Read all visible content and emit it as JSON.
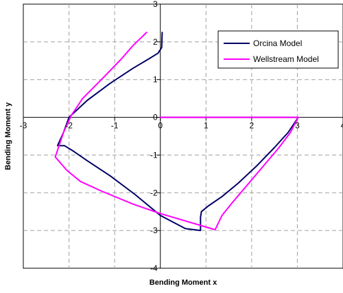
{
  "chart_data": {
    "type": "line",
    "title": "",
    "xlabel": "Bending Moment x",
    "ylabel": "Bending Moment y",
    "xlim": [
      -3,
      4
    ],
    "ylim": [
      -4,
      3
    ],
    "xticks": [
      -3,
      -2,
      -1,
      0,
      1,
      2,
      3,
      4
    ],
    "yticks": [
      -4,
      -3,
      -2,
      -1,
      0,
      1,
      2,
      3
    ],
    "grid": true,
    "legend_position": "top-right",
    "series": [
      {
        "name": "Orcina Model",
        "color": "#000066",
        "points": [
          [
            0.0,
            0.0
          ],
          [
            3.02,
            0.0
          ],
          [
            2.8,
            -0.4
          ],
          [
            2.5,
            -0.8
          ],
          [
            2.1,
            -1.3
          ],
          [
            1.7,
            -1.75
          ],
          [
            1.35,
            -2.1
          ],
          [
            1.05,
            -2.35
          ],
          [
            0.9,
            -2.5
          ],
          [
            0.88,
            -2.65
          ],
          [
            0.88,
            -3.0
          ],
          [
            0.55,
            -2.95
          ],
          [
            0.0,
            -2.6
          ],
          [
            -0.55,
            -2.05
          ],
          [
            -1.1,
            -1.55
          ],
          [
            -1.6,
            -1.15
          ],
          [
            -1.9,
            -0.9
          ],
          [
            -2.1,
            -0.75
          ],
          [
            -2.25,
            -0.75
          ],
          [
            -2.12,
            -0.4
          ],
          [
            -2.0,
            0.0
          ],
          [
            -1.6,
            0.45
          ],
          [
            -1.1,
            0.9
          ],
          [
            -0.6,
            1.3
          ],
          [
            -0.25,
            1.55
          ],
          [
            -0.05,
            1.7
          ],
          [
            0.03,
            1.85
          ],
          [
            0.04,
            2.25
          ]
        ]
      },
      {
        "name": "Wellstream Model",
        "color": "#ff00ff",
        "points": [
          [
            0.0,
            0.0
          ],
          [
            3.02,
            0.0
          ],
          [
            2.85,
            -0.4
          ],
          [
            2.6,
            -0.8
          ],
          [
            2.25,
            -1.3
          ],
          [
            1.9,
            -1.8
          ],
          [
            1.55,
            -2.3
          ],
          [
            1.35,
            -2.6
          ],
          [
            1.2,
            -2.98
          ],
          [
            0.0,
            -2.55
          ],
          [
            -0.6,
            -2.3
          ],
          [
            -1.3,
            -1.95
          ],
          [
            -1.75,
            -1.7
          ],
          [
            -2.05,
            -1.4
          ],
          [
            -2.3,
            -1.05
          ],
          [
            -2.12,
            -0.4
          ],
          [
            -1.95,
            0.05
          ],
          [
            -1.7,
            0.5
          ],
          [
            -1.25,
            1.05
          ],
          [
            -0.85,
            1.55
          ],
          [
            -0.6,
            1.9
          ],
          [
            -0.3,
            2.25
          ]
        ]
      }
    ]
  }
}
